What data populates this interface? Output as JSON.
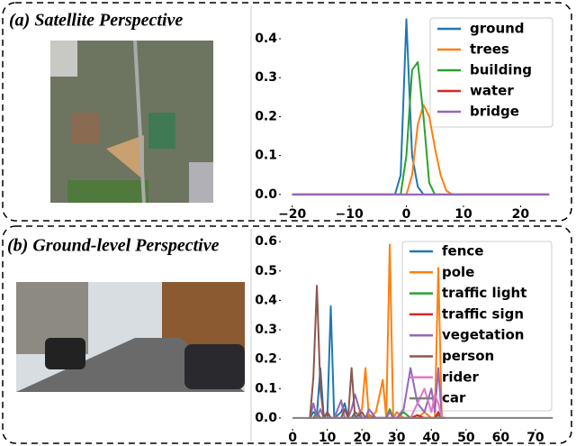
{
  "chart_data": [
    {
      "type": "line",
      "title": "(a) Satellite Perspective",
      "x": [
        -20,
        -2,
        -1,
        0,
        1,
        2,
        3,
        4,
        5,
        6,
        7,
        8,
        25
      ],
      "series": [
        {
          "name": "ground",
          "color": "#1f77b4",
          "values": [
            0,
            0,
            0.05,
            0.45,
            0.1,
            0.02,
            0,
            0,
            0,
            0,
            0,
            0,
            0
          ]
        },
        {
          "name": "trees",
          "color": "#ff7f0e",
          "values": [
            0,
            0,
            0,
            0,
            0.05,
            0.18,
            0.23,
            0.2,
            0.12,
            0.05,
            0.01,
            0,
            0
          ]
        },
        {
          "name": "building",
          "color": "#2ca02c",
          "values": [
            0,
            0,
            0,
            0.1,
            0.32,
            0.34,
            0.2,
            0.03,
            0,
            0,
            0,
            0,
            0
          ]
        },
        {
          "name": "water",
          "color": "#d62728",
          "values": [
            0,
            0,
            0,
            0,
            0,
            0,
            0,
            0,
            0,
            0,
            0,
            0,
            0
          ]
        },
        {
          "name": "bridge",
          "color": "#9467bd",
          "values": [
            0,
            0,
            0,
            0,
            0,
            0,
            0,
            0,
            0,
            0,
            0,
            0,
            0
          ]
        }
      ],
      "xlim": [
        -22,
        25.3
      ],
      "ylim": [
        -0.028,
        0.481
      ],
      "xticks": [
        {
          "value": -20,
          "label": "−20"
        },
        {
          "value": -10,
          "label": "−10"
        },
        0,
        10,
        20
      ],
      "yticks": [
        {
          "value": 0,
          "label": "0.0"
        },
        {
          "value": 0.1,
          "label": "0.1"
        },
        {
          "value": 0.2,
          "label": "0.2"
        },
        {
          "value": 0.3,
          "label": "0.3"
        },
        {
          "value": 0.4,
          "label": "0.4"
        }
      ],
      "legend": "upper right"
    },
    {
      "type": "line",
      "title": "(b) Ground-level Perspective",
      "x": [
        0,
        5,
        6,
        7,
        8,
        9,
        10,
        11,
        12,
        14,
        15,
        16,
        17,
        18,
        20,
        21,
        22,
        24,
        26,
        27,
        28,
        29,
        30,
        32,
        34,
        36,
        38,
        40,
        41,
        42,
        43,
        44,
        75
      ],
      "series": [
        {
          "name": "fence",
          "color": "#1f77b4",
          "values": [
            null,
            0,
            0.02,
            0.01,
            0.17,
            0,
            0,
            0.38,
            0,
            0.02,
            0.05,
            0,
            0,
            0.02,
            0,
            0,
            0.01,
            0,
            0,
            0,
            0,
            0,
            0.02,
            0,
            0,
            0,
            0,
            0,
            0,
            0.01,
            0,
            0,
            null
          ]
        },
        {
          "name": "pole",
          "color": "#ff7f0e",
          "values": [
            null,
            0,
            0,
            0,
            0,
            0,
            0,
            0,
            0,
            0,
            0,
            0,
            0,
            0,
            0.03,
            0.17,
            0,
            0.02,
            0.13,
            0,
            0.59,
            0,
            0.02,
            0,
            0,
            0,
            0.02,
            0,
            0,
            0.51,
            0,
            0,
            null
          ]
        },
        {
          "name": "traffic light",
          "color": "#2ca02c",
          "values": [
            null,
            0,
            0,
            0.02,
            0,
            0,
            0,
            0,
            0,
            0,
            0,
            0,
            0,
            0,
            0,
            0,
            0,
            0,
            0,
            0,
            0.03,
            0,
            0,
            0.02,
            0,
            0,
            0,
            0,
            0,
            0.01,
            0,
            0,
            null
          ]
        },
        {
          "name": "traffic sign",
          "color": "#d62728",
          "values": [
            null,
            0,
            0,
            0,
            0,
            0,
            0.02,
            0,
            0,
            0,
            0,
            0,
            0,
            0,
            0,
            0,
            0,
            0,
            0,
            0,
            0,
            0,
            0,
            0,
            0,
            0.01,
            0,
            0,
            0,
            0.02,
            0,
            0,
            null
          ]
        },
        {
          "name": "vegetation",
          "color": "#9467bd",
          "values": [
            null,
            0,
            0.05,
            0,
            0.03,
            0,
            0.02,
            0,
            0,
            0.06,
            0,
            0,
            0.03,
            0.08,
            0,
            0,
            0.03,
            0,
            0,
            0,
            0.02,
            0,
            0,
            0.03,
            0.17,
            0.05,
            0.02,
            0.1,
            0.02,
            0.17,
            0,
            0,
            null
          ]
        },
        {
          "name": "person",
          "color": "#8c564b",
          "values": [
            null,
            0,
            0.14,
            0.45,
            0.1,
            0,
            0.02,
            0,
            0,
            0,
            0.03,
            0,
            0.17,
            0,
            0.02,
            0,
            0,
            0,
            0,
            0,
            0,
            0,
            0,
            0,
            0,
            0,
            0,
            0,
            0,
            0,
            0,
            0,
            null
          ]
        },
        {
          "name": "rider",
          "color": "#e377c2",
          "values": [
            null,
            0,
            0,
            0,
            0,
            0,
            0,
            0,
            0,
            0,
            0,
            0,
            0,
            0,
            0,
            0,
            0,
            0,
            0,
            0,
            0,
            0,
            0,
            0,
            0,
            0.05,
            0.1,
            0.02,
            0.08,
            0.05,
            0,
            0,
            null
          ]
        },
        {
          "name": "car",
          "color": "#7f7f7f",
          "values": [
            0,
            0,
            0,
            0,
            0,
            0,
            0,
            0,
            0,
            0,
            0,
            0,
            0,
            0,
            0,
            0,
            0,
            0,
            0,
            0,
            0,
            0,
            0,
            0,
            0,
            0,
            0,
            0,
            0,
            0,
            0,
            0,
            0
          ]
        }
      ],
      "xlim": [
        -3.4,
        77.8
      ],
      "ylim": [
        -0.037,
        0.631
      ],
      "xticks": [
        0,
        10,
        20,
        30,
        40,
        50,
        60,
        70
      ],
      "yticks": [
        {
          "value": 0,
          "label": "0.0"
        },
        {
          "value": 0.1,
          "label": "0.1"
        },
        {
          "value": 0.2,
          "label": "0.2"
        },
        {
          "value": 0.3,
          "label": "0.3"
        },
        {
          "value": 0.4,
          "label": "0.4"
        },
        {
          "value": 0.5,
          "label": "0.5"
        },
        {
          "value": 0.6,
          "label": "0.6"
        }
      ],
      "legend": "upper right"
    }
  ]
}
